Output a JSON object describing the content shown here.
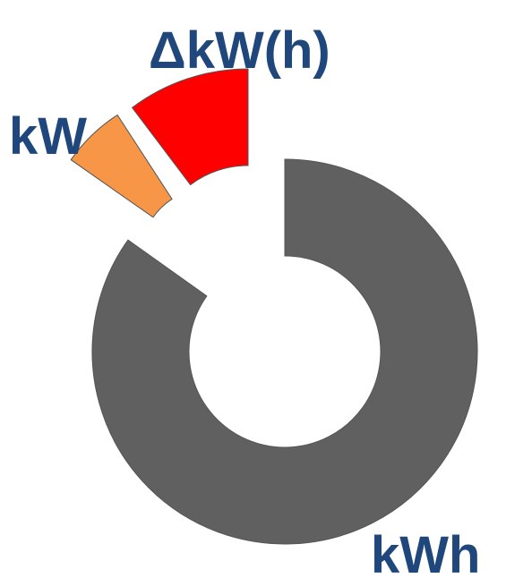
{
  "labels": {
    "delta": "ΔkW(h)",
    "power": "kW",
    "energy": "kWh"
  }
}
